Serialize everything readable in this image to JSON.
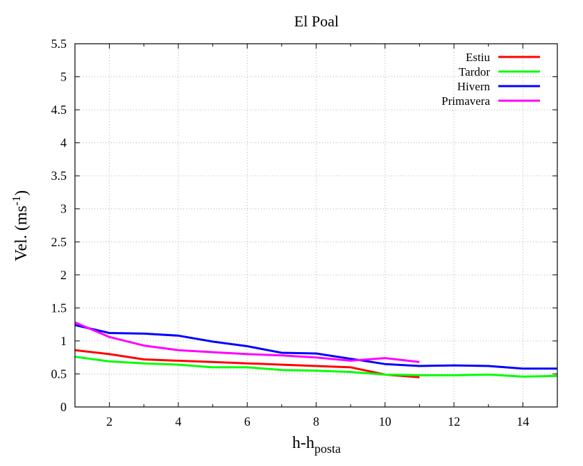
{
  "chart_data": {
    "type": "line",
    "title": "El Poal",
    "xlabel_main": "h-h",
    "xlabel_sub": "posta",
    "ylabel_main": "Vel. (ms",
    "ylabel_sup": "-1",
    "ylabel_close": ")",
    "xlim": [
      1,
      15
    ],
    "ylim": [
      0,
      5.5
    ],
    "x_ticks": [
      2,
      4,
      6,
      8,
      10,
      12,
      14
    ],
    "x_tick_labels": [
      "2",
      "4",
      "6",
      "8",
      "10",
      "12",
      "14"
    ],
    "y_ticks": [
      0,
      0.5,
      1,
      1.5,
      2,
      2.5,
      3,
      3.5,
      4,
      4.5,
      5,
      5.5
    ],
    "y_tick_labels": [
      "0",
      "0.5",
      "1",
      "1.5",
      "2",
      "2.5",
      "3",
      "3.5",
      "4",
      "4.5",
      "5",
      "5.5"
    ],
    "grid": true,
    "legend_position": "top-right",
    "series": [
      {
        "name": "Estiu",
        "color": "#ff0000",
        "x": [
          1,
          2,
          3,
          4,
          5,
          6,
          7,
          8,
          9,
          10,
          11
        ],
        "y": [
          0.86,
          0.8,
          0.72,
          0.7,
          0.68,
          0.66,
          0.64,
          0.62,
          0.6,
          0.49,
          0.45
        ]
      },
      {
        "name": "Tardor",
        "color": "#00ff00",
        "x": [
          1,
          2,
          3,
          4,
          5,
          6,
          7,
          8,
          9,
          10,
          11,
          12,
          13,
          14,
          15
        ],
        "y": [
          0.76,
          0.69,
          0.66,
          0.64,
          0.6,
          0.6,
          0.56,
          0.55,
          0.53,
          0.49,
          0.48,
          0.48,
          0.49,
          0.46,
          0.47
        ]
      },
      {
        "name": "Hivern",
        "color": "#0000ff",
        "x": [
          1,
          2,
          3,
          4,
          5,
          6,
          7,
          8,
          9,
          10,
          11,
          12,
          13,
          14,
          15
        ],
        "y": [
          1.24,
          1.12,
          1.11,
          1.08,
          0.99,
          0.92,
          0.82,
          0.81,
          0.73,
          0.65,
          0.62,
          0.63,
          0.62,
          0.58,
          0.58
        ]
      },
      {
        "name": "Primavera",
        "color": "#ff00ff",
        "x": [
          1,
          2,
          3,
          4,
          5,
          6,
          7,
          8,
          9,
          10,
          11
        ],
        "y": [
          1.28,
          1.06,
          0.93,
          0.86,
          0.83,
          0.8,
          0.78,
          0.75,
          0.7,
          0.74,
          0.68
        ]
      }
    ]
  }
}
